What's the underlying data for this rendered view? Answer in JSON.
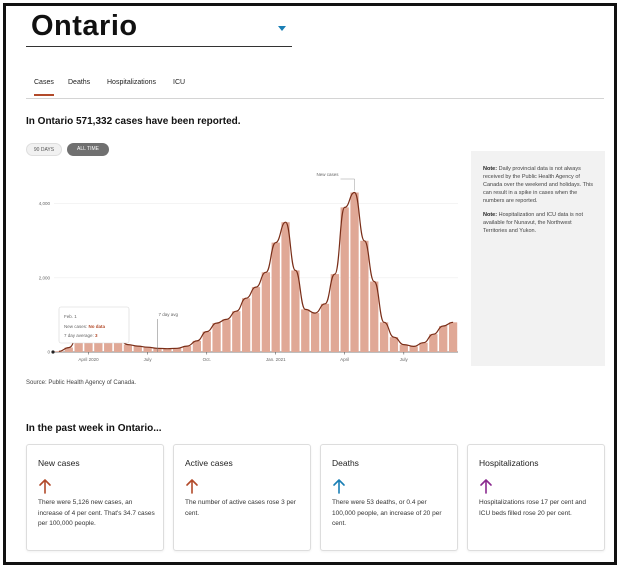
{
  "region": {
    "title": "Ontario",
    "dropdown_icon": "caret-down-icon"
  },
  "tabs": [
    {
      "label": "Cases",
      "active": true
    },
    {
      "label": "Deaths",
      "active": false
    },
    {
      "label": "Hospitalizations",
      "active": false
    },
    {
      "label": "ICU",
      "active": false
    }
  ],
  "headline": "In Ontario 571,332 cases have been reported.",
  "toggles": {
    "days": "90 DAYS",
    "all": "ALL TIME",
    "selected": "ALL TIME"
  },
  "colors": {
    "accent": "#b24a2a",
    "bars": "#e0a896",
    "line": "#7a2e18",
    "deaths_arrow": "#1a7fb5",
    "hosp_arrow": "#8b2a8f",
    "caret": "#1a7fb5"
  },
  "chart_data": {
    "type": "bar",
    "series": [
      {
        "name": "New cases",
        "kind": "bar"
      },
      {
        "name": "7 day avg",
        "kind": "line"
      }
    ],
    "y_ticks": [
      "0",
      "2,000",
      "4,000"
    ],
    "x_ticks": [
      "April 2020",
      "July",
      "Oct.",
      "Jan. 2021",
      "April",
      "July"
    ],
    "ylim": [
      0,
      4800
    ],
    "x": [
      "2020-03-01",
      "2020-03-15",
      "2020-03-29",
      "2020-04-12",
      "2020-04-26",
      "2020-05-10",
      "2020-05-24",
      "2020-06-07",
      "2020-06-21",
      "2020-07-05",
      "2020-07-19",
      "2020-08-02",
      "2020-08-16",
      "2020-08-30",
      "2020-09-13",
      "2020-09-27",
      "2020-10-11",
      "2020-10-25",
      "2020-11-08",
      "2020-11-22",
      "2020-12-06",
      "2020-12-20",
      "2021-01-03",
      "2021-01-17",
      "2021-01-31",
      "2021-02-14",
      "2021-02-28",
      "2021-03-14",
      "2021-03-28",
      "2021-04-11",
      "2021-04-25",
      "2021-05-09",
      "2021-05-23",
      "2021-06-06",
      "2021-06-20",
      "2021-07-04",
      "2021-07-18",
      "2021-08-01",
      "2021-08-15",
      "2021-08-29",
      "2021-09-12"
    ],
    "values": [
      20,
      120,
      450,
      550,
      520,
      380,
      350,
      200,
      160,
      130,
      100,
      90,
      100,
      160,
      300,
      550,
      780,
      880,
      1100,
      1450,
      1750,
      2150,
      2950,
      3500,
      2200,
      1150,
      1050,
      1300,
      2100,
      3900,
      4300,
      3000,
      1900,
      800,
      400,
      200,
      150,
      250,
      480,
      700,
      800
    ],
    "tooltip": {
      "date": "Feb. 1",
      "new_cases_label": "New cases:",
      "new_cases_value": "No data",
      "avg_label": "7 day average:",
      "avg_value": "3"
    },
    "annotations": {
      "new_cases": "New cases",
      "seven_day": "7 day avg"
    }
  },
  "note": {
    "p1_label": "Note:",
    "p1_text": "Daily provincial data is not always received by the Public Health Agency of Canada over the weekend and holidays. This can result in a spike in cases when the numbers are reported.",
    "p2_label": "Note:",
    "p2_text": "Hospitalization and ICU data is not available for Nunavut, the Northwest Territories and Yukon."
  },
  "source": "Source: Public Health Agency of Canada.",
  "week_title": "In the past week in Ontario...",
  "cards": [
    {
      "title": "New cases",
      "arrow_icon": "arrow-up-icon",
      "color": "#b24a2a",
      "text": "There were 5,126 new cases, an increase of 4 per cent. That's 34.7 cases per 100,000 people."
    },
    {
      "title": "Active cases",
      "arrow_icon": "arrow-up-icon",
      "color": "#b24a2a",
      "text": "The number of active cases rose 3 per cent."
    },
    {
      "title": "Deaths",
      "arrow_icon": "arrow-up-icon",
      "color": "#1a7fb5",
      "text": "There were 53 deaths, or 0.4 per 100,000 people, an increase of 20 per cent."
    },
    {
      "title": "Hospitalizations",
      "arrow_icon": "arrow-up-icon",
      "color": "#8b2a8f",
      "text": "Hospitalizations rose 17 per cent and ICU beds filled rose 20 per cent."
    }
  ]
}
